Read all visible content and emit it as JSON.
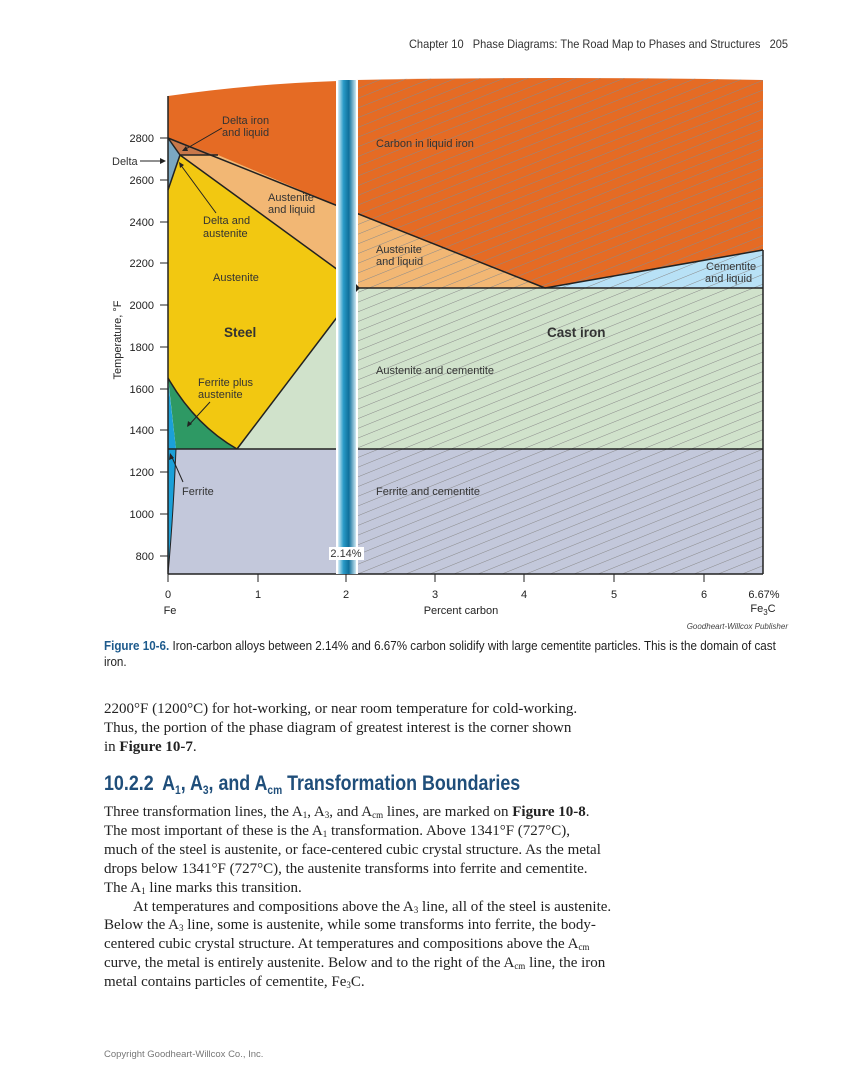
{
  "header": {
    "chapter": "Chapter 10",
    "title": "Phase Diagrams: The Road Map to Phases and Structures",
    "page_number": "205"
  },
  "figure": {
    "y_axis_label": "Temperature, °F",
    "y_ticks": [
      "2800",
      "2600",
      "2400",
      "2200",
      "2000",
      "1800",
      "1600",
      "1400",
      "1200",
      "1000",
      "800"
    ],
    "x_ticks": [
      "0",
      "1",
      "2",
      "3",
      "4",
      "5",
      "6",
      "6.67%"
    ],
    "x_axis_label": "Percent carbon",
    "x_left_label": "Fe",
    "x_right_label": {
      "base": "Fe",
      "sub": "3",
      "end": "C"
    },
    "column_label": "2.14%",
    "regions": {
      "delta_iron_liquid": [
        "Delta iron",
        "and liquid"
      ],
      "delta": "Delta",
      "carbon_liquid": "Carbon in liquid iron",
      "austenite_liquid_left": [
        "Austenite",
        "and liquid"
      ],
      "delta_austenite": [
        "Delta and",
        "austenite"
      ],
      "austenite_liquid_right": [
        "Austenite",
        "and liquid"
      ],
      "cementite_liquid": [
        "Cementite",
        "and liquid"
      ],
      "austenite": "Austenite",
      "steel": "Steel",
      "cast_iron": "Cast iron",
      "austenite_cementite": "Austenite and cementite",
      "ferrite_austenite": [
        "Ferrite plus",
        "austenite"
      ],
      "ferrite": "Ferrite",
      "ferrite_cementite": "Ferrite and cementite"
    },
    "colors": {
      "liquid": "#E56B24",
      "austenite_liquid": "#F2B774",
      "austenite": "#F2C811",
      "ferrite_austenite": "#2E9964",
      "austenite_cementite": "#D0E2CB",
      "ferrite_cementite": "#C3C8DB",
      "cementite_liquid": "#B8E1F6",
      "delta": "#7BA8C2",
      "column": "#168DBE"
    },
    "credit": "Goodheart-Willcox Publisher",
    "caption": {
      "label": "Figure 10-6.",
      "text": " Iron-carbon alloys between 2.14% and 6.67% carbon solidify with large cementite particles. This is the domain of cast iron."
    }
  },
  "intro_lines": [
    [
      "2200°F (1200°C) for hot-working, or near room temperature for cold-working."
    ],
    [
      "Thus, the portion of the phase diagram of greatest interest is the corner shown"
    ],
    [
      "in ",
      {
        "b": "Figure 10-7"
      },
      "."
    ]
  ],
  "section": {
    "number": "10.2.2",
    "title_parts": [
      "A",
      {
        "sub": "1"
      },
      ", A",
      {
        "sub": "3"
      },
      ", and A",
      {
        "sub": "cm"
      },
      " Transformation Boundaries"
    ]
  },
  "body_lines": [
    [
      "Three transformation lines, the A",
      {
        "sub": "1"
      },
      ", A",
      {
        "sub": "3"
      },
      ", and A",
      {
        "sub": "cm"
      },
      " lines, are marked on ",
      {
        "b": "Figure 10-8"
      },
      "."
    ],
    [
      "The most important of these is the A",
      {
        "sub": "1"
      },
      " transformation. Above 1341°F (727°C),"
    ],
    [
      "much of the steel is austenite, or face-centered cubic crystal structure. As the metal"
    ],
    [
      "drops below 1341°F (727°C), the austenite transforms into ferrite and cementite."
    ],
    [
      "The A",
      {
        "sub": "1"
      },
      " line marks this transition."
    ],
    [
      {
        "indent": true
      },
      "At temperatures and compositions above the A",
      {
        "sub": "3"
      },
      " line, all of the steel is austenite."
    ],
    [
      "Below the A",
      {
        "sub": "3"
      },
      " line, some is austenite, while some transforms into ferrite, the body-"
    ],
    [
      "centered cubic crystal structure. At temperatures and compositions above the A",
      {
        "sub": "cm"
      }
    ],
    [
      "curve, the metal is entirely austenite. Below and to the right of the A",
      {
        "sub": "cm"
      },
      " line, the iron"
    ],
    [
      "metal contains particles of cementite, Fe",
      {
        "sub": "3"
      },
      "C."
    ]
  ],
  "footer": {
    "copyright": "Copyright Goodheart-Willcox Co., Inc."
  }
}
